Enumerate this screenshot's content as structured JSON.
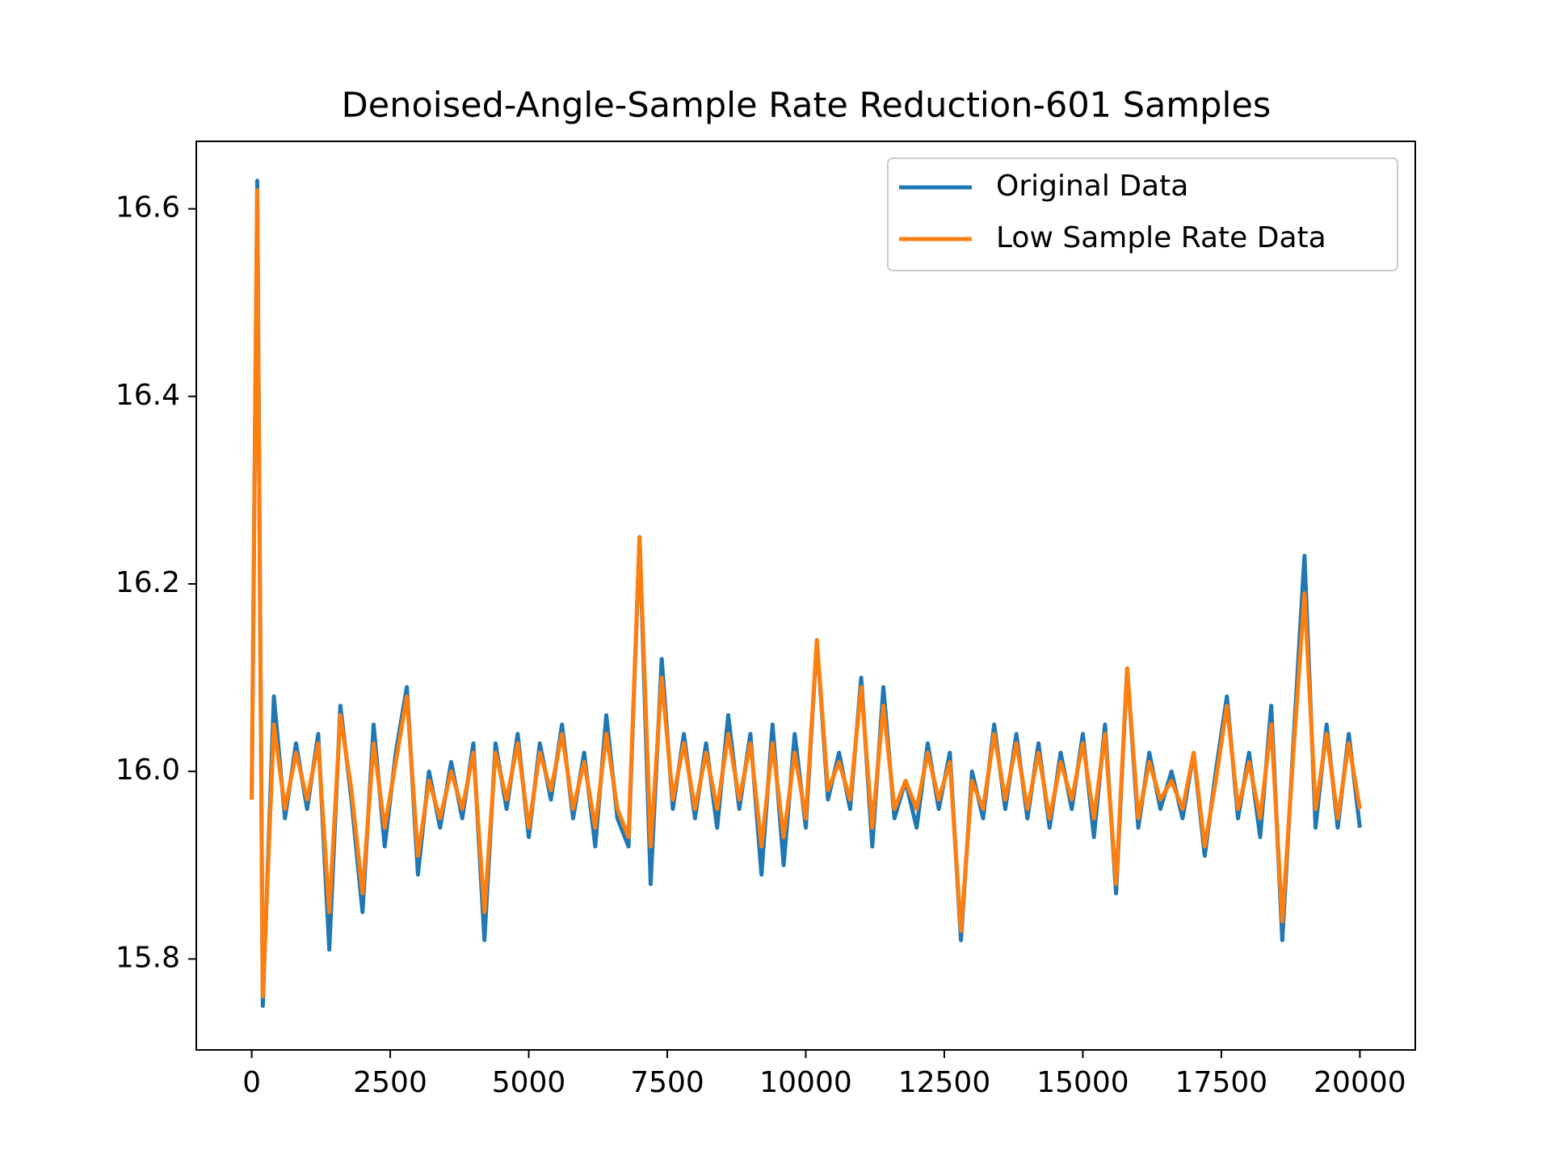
{
  "chart_data": {
    "type": "line",
    "title": "Denoised-Angle-Sample Rate Reduction-601 Samples",
    "x": [
      0,
      100,
      200,
      400,
      600,
      800,
      1000,
      1200,
      1400,
      1600,
      1800,
      2000,
      2200,
      2400,
      2600,
      2800,
      3000,
      3200,
      3400,
      3600,
      3800,
      4000,
      4200,
      4400,
      4600,
      4800,
      5000,
      5200,
      5400,
      5600,
      5800,
      6000,
      6200,
      6400,
      6600,
      6800,
      7000,
      7200,
      7400,
      7600,
      7800,
      8000,
      8200,
      8400,
      8600,
      8800,
      9000,
      9200,
      9400,
      9600,
      9800,
      10000,
      10200,
      10400,
      10600,
      10800,
      11000,
      11200,
      11400,
      11600,
      11800,
      12000,
      12200,
      12400,
      12600,
      12800,
      13000,
      13200,
      13400,
      13600,
      13800,
      14000,
      14200,
      14400,
      14600,
      14800,
      15000,
      15200,
      15400,
      15600,
      15800,
      16000,
      16200,
      16400,
      16600,
      16800,
      17000,
      17200,
      17400,
      17600,
      17800,
      18000,
      18200,
      18400,
      18600,
      18800,
      19000,
      19200,
      19400,
      19600,
      19800,
      20000
    ],
    "series": [
      {
        "name": "Original Data",
        "color": "#1f77b4",
        "values": [
          15.97,
          16.63,
          15.75,
          16.08,
          15.95,
          16.03,
          15.96,
          16.04,
          15.81,
          16.07,
          15.97,
          15.85,
          16.05,
          15.92,
          16.02,
          16.09,
          15.89,
          16.0,
          15.94,
          16.01,
          15.95,
          16.03,
          15.82,
          16.03,
          15.96,
          16.04,
          15.93,
          16.03,
          15.97,
          16.05,
          15.95,
          16.02,
          15.92,
          16.06,
          15.95,
          15.92,
          16.25,
          15.88,
          16.12,
          15.96,
          16.04,
          15.95,
          16.03,
          15.94,
          16.06,
          15.96,
          16.04,
          15.89,
          16.05,
          15.9,
          16.04,
          15.94,
          16.14,
          15.97,
          16.02,
          15.96,
          16.1,
          15.92,
          16.09,
          15.95,
          15.99,
          15.94,
          16.03,
          15.96,
          16.02,
          15.82,
          16.0,
          15.95,
          16.05,
          15.96,
          16.04,
          15.95,
          16.03,
          15.94,
          16.02,
          15.96,
          16.04,
          15.93,
          16.05,
          15.87,
          16.11,
          15.94,
          16.02,
          15.96,
          16.0,
          15.95,
          16.02,
          15.91,
          16.0,
          16.08,
          15.95,
          16.02,
          15.93,
          16.07,
          15.82,
          16.03,
          16.23,
          15.94,
          16.05,
          15.94,
          16.04,
          15.94
        ]
      },
      {
        "name": "Low Sample Rate Data",
        "color": "#ff7f0e",
        "values": [
          15.97,
          16.62,
          15.76,
          16.05,
          15.96,
          16.02,
          15.97,
          16.03,
          15.85,
          16.06,
          15.98,
          15.87,
          16.03,
          15.94,
          16.01,
          16.08,
          15.91,
          15.99,
          15.95,
          16.0,
          15.96,
          16.02,
          15.85,
          16.02,
          15.97,
          16.03,
          15.94,
          16.02,
          15.98,
          16.04,
          15.96,
          16.01,
          15.94,
          16.04,
          15.96,
          15.93,
          16.25,
          15.92,
          16.1,
          15.97,
          16.03,
          15.96,
          16.02,
          15.96,
          16.04,
          15.97,
          16.03,
          15.92,
          16.03,
          15.93,
          16.02,
          15.95,
          16.14,
          15.98,
          16.01,
          15.97,
          16.09,
          15.94,
          16.07,
          15.96,
          15.99,
          15.96,
          16.02,
          15.97,
          16.01,
          15.83,
          15.99,
          15.96,
          16.04,
          15.97,
          16.03,
          15.96,
          16.02,
          15.95,
          16.01,
          15.97,
          16.03,
          15.95,
          16.04,
          15.88,
          16.11,
          15.95,
          16.01,
          15.97,
          15.99,
          15.96,
          16.02,
          15.92,
          15.99,
          16.07,
          15.96,
          16.01,
          15.95,
          16.05,
          15.84,
          16.02,
          16.19,
          15.96,
          16.04,
          15.95,
          16.03,
          15.96
        ]
      }
    ],
    "xlim": [
      -1000,
      21000
    ],
    "ylim": [
      15.703,
      16.672
    ],
    "xticks": [
      0,
      2500,
      5000,
      7500,
      10000,
      12500,
      15000,
      17500,
      20000
    ],
    "yticks": [
      15.8,
      {
        "value": 16,
        "label": "16.0"
      },
      16.2,
      16.4,
      16.6
    ],
    "grid": false,
    "legend": "upper right"
  }
}
